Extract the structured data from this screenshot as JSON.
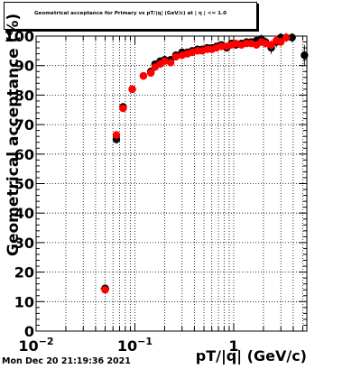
{
  "chart_data": {
    "type": "scatter",
    "title": "Geometrical acceptance for Primary vs pT/|q| (GeV/c) at |  η | <= 1.0",
    "xlabel": "pT/|q| (GeV/c)",
    "ylabel": "Geometrical acceptance (%)",
    "xscale": "log",
    "xlim": [
      0.01,
      5.5
    ],
    "ylim": [
      0,
      100
    ],
    "x_ticks": [
      {
        "v": 0.01,
        "base": "10",
        "exp": "−2"
      },
      {
        "v": 0.1,
        "base": "10",
        "exp": "−1"
      },
      {
        "v": 1,
        "base": "1",
        "exp": ""
      }
    ],
    "y_ticks": [
      0,
      10,
      20,
      30,
      40,
      50,
      60,
      70,
      80,
      90,
      100
    ],
    "grid": true,
    "colors": {
      "series_a": "#000000",
      "series_b": "#ff0000"
    },
    "series": [
      {
        "points": [
          {
            "x": 0.05,
            "y": 14.5,
            "xerr": 0.005,
            "yerr": 1.2
          },
          {
            "x": 0.065,
            "y": 65,
            "xerr": 0.003,
            "yerr": 1.5
          },
          {
            "x": 0.076,
            "y": 76,
            "xerr": 0.003,
            "yerr": 1.3
          },
          {
            "x": 0.094,
            "y": 82,
            "xerr": 0.004,
            "yerr": 1.0
          },
          {
            "x": 0.122,
            "y": 86.5,
            "xerr": 0.004,
            "yerr": 0.9
          },
          {
            "x": 0.145,
            "y": 88,
            "xerr": 0.005,
            "yerr": 0.8
          },
          {
            "x": 0.16,
            "y": 90.5,
            "xerr": 0.005,
            "yerr": 0.8
          },
          {
            "x": 0.18,
            "y": 91.5,
            "xerr": 0.006,
            "yerr": 0.7
          },
          {
            "x": 0.2,
            "y": 92,
            "xerr": 0.006,
            "yerr": 0.7
          },
          {
            "x": 0.23,
            "y": 92,
            "xerr": 0.007,
            "yerr": 0.7
          },
          {
            "x": 0.26,
            "y": 93.5,
            "xerr": 0.008,
            "yerr": 0.7
          },
          {
            "x": 0.3,
            "y": 94.5,
            "xerr": 0.009,
            "yerr": 0.7
          },
          {
            "x": 0.34,
            "y": 94.5,
            "xerr": 0.01,
            "yerr": 0.7
          },
          {
            "x": 0.38,
            "y": 95,
            "xerr": 0.011,
            "yerr": 0.7
          },
          {
            "x": 0.43,
            "y": 95.5,
            "xerr": 0.012,
            "yerr": 0.7
          },
          {
            "x": 0.48,
            "y": 95.5,
            "xerr": 0.014,
            "yerr": 0.7
          },
          {
            "x": 0.54,
            "y": 96,
            "xerr": 0.016,
            "yerr": 0.8
          },
          {
            "x": 0.6,
            "y": 96,
            "xerr": 0.018,
            "yerr": 0.8
          },
          {
            "x": 0.67,
            "y": 96.5,
            "xerr": 0.02,
            "yerr": 0.8
          },
          {
            "x": 0.75,
            "y": 97,
            "xerr": 0.022,
            "yerr": 0.9
          },
          {
            "x": 0.85,
            "y": 96,
            "xerr": 0.025,
            "yerr": 1.0
          },
          {
            "x": 0.95,
            "y": 97.5,
            "xerr": 0.028,
            "yerr": 1.0
          },
          {
            "x": 1.05,
            "y": 97,
            "xerr": 0.03,
            "yerr": 1.1
          },
          {
            "x": 1.2,
            "y": 97.5,
            "xerr": 0.035,
            "yerr": 1.1
          },
          {
            "x": 1.35,
            "y": 98,
            "xerr": 0.04,
            "yerr": 1.2
          },
          {
            "x": 1.5,
            "y": 98,
            "xerr": 0.045,
            "yerr": 1.2
          },
          {
            "x": 1.7,
            "y": 98.5,
            "xerr": 0.05,
            "yerr": 1.3
          },
          {
            "x": 1.9,
            "y": 99,
            "xerr": 0.055,
            "yerr": 1.5
          },
          {
            "x": 2.1,
            "y": 98,
            "xerr": 0.06,
            "yerr": 1.5
          },
          {
            "x": 2.4,
            "y": 96,
            "xerr": 0.07,
            "yerr": 2.0
          },
          {
            "x": 2.7,
            "y": 98,
            "xerr": 0.08,
            "yerr": 1.8
          },
          {
            "x": 3.0,
            "y": 99.5,
            "xerr": 0.09,
            "yerr": 1.5
          },
          {
            "x": 3.4,
            "y": 99.5,
            "xerr": 0.1,
            "yerr": 1.5
          },
          {
            "x": 3.9,
            "y": 99.5,
            "xerr": 0.11,
            "yerr": 1.5
          },
          {
            "x": 5.2,
            "y": 93.5,
            "xerr": 0.15,
            "yerr": 3.5
          }
        ]
      },
      {
        "points": [
          {
            "x": 0.05,
            "y": 14,
            "xerr": 0.005,
            "yerr": 1.0
          },
          {
            "x": 0.065,
            "y": 66.5,
            "xerr": 0.003,
            "yerr": 1.3
          },
          {
            "x": 0.076,
            "y": 75.5,
            "xerr": 0.003,
            "yerr": 1.2
          },
          {
            "x": 0.094,
            "y": 82,
            "xerr": 0.004,
            "yerr": 0.9
          },
          {
            "x": 0.122,
            "y": 86.5,
            "xerr": 0.004,
            "yerr": 0.8
          },
          {
            "x": 0.145,
            "y": 87.5,
            "xerr": 0.005,
            "yerr": 0.7
          },
          {
            "x": 0.16,
            "y": 89.5,
            "xerr": 0.005,
            "yerr": 0.7
          },
          {
            "x": 0.18,
            "y": 90.5,
            "xerr": 0.006,
            "yerr": 0.7
          },
          {
            "x": 0.2,
            "y": 91.5,
            "xerr": 0.006,
            "yerr": 0.6
          },
          {
            "x": 0.23,
            "y": 91,
            "xerr": 0.007,
            "yerr": 0.6
          },
          {
            "x": 0.26,
            "y": 93,
            "xerr": 0.008,
            "yerr": 0.6
          },
          {
            "x": 0.3,
            "y": 93.5,
            "xerr": 0.009,
            "yerr": 0.6
          },
          {
            "x": 0.34,
            "y": 94,
            "xerr": 0.01,
            "yerr": 0.6
          },
          {
            "x": 0.38,
            "y": 94.5,
            "xerr": 0.011,
            "yerr": 0.6
          },
          {
            "x": 0.43,
            "y": 95,
            "xerr": 0.012,
            "yerr": 0.6
          },
          {
            "x": 0.48,
            "y": 95,
            "xerr": 0.014,
            "yerr": 0.6
          },
          {
            "x": 0.54,
            "y": 95.5,
            "xerr": 0.016,
            "yerr": 0.7
          },
          {
            "x": 0.6,
            "y": 95.5,
            "xerr": 0.018,
            "yerr": 0.7
          },
          {
            "x": 0.67,
            "y": 96,
            "xerr": 0.02,
            "yerr": 0.7
          },
          {
            "x": 0.75,
            "y": 96.5,
            "xerr": 0.022,
            "yerr": 0.8
          },
          {
            "x": 0.85,
            "y": 96.5,
            "xerr": 0.025,
            "yerr": 0.9
          },
          {
            "x": 0.95,
            "y": 97,
            "xerr": 0.028,
            "yerr": 0.9
          },
          {
            "x": 1.05,
            "y": 97.5,
            "xerr": 0.03,
            "yerr": 1.0
          },
          {
            "x": 1.2,
            "y": 97,
            "xerr": 0.035,
            "yerr": 1.0
          },
          {
            "x": 1.35,
            "y": 97.5,
            "xerr": 0.04,
            "yerr": 1.1
          },
          {
            "x": 1.5,
            "y": 97.5,
            "xerr": 0.045,
            "yerr": 1.1
          },
          {
            "x": 1.7,
            "y": 97,
            "xerr": 0.05,
            "yerr": 1.2
          },
          {
            "x": 1.9,
            "y": 98,
            "xerr": 0.055,
            "yerr": 1.3
          },
          {
            "x": 2.1,
            "y": 97.5,
            "xerr": 0.06,
            "yerr": 1.4
          },
          {
            "x": 2.4,
            "y": 97,
            "xerr": 0.07,
            "yerr": 1.6
          },
          {
            "x": 2.7,
            "y": 98.5,
            "xerr": 0.08,
            "yerr": 1.6
          },
          {
            "x": 3.0,
            "y": 98,
            "xerr": 0.09,
            "yerr": 1.5
          },
          {
            "x": 3.4,
            "y": 99.5,
            "xerr": 0.1,
            "yerr": 1.5
          }
        ]
      }
    ]
  },
  "footer": {
    "timestamp": "Mon Dec 20 21:19:36 2021"
  }
}
